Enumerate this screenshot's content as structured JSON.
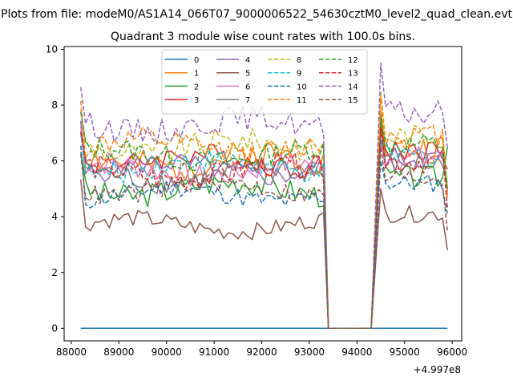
{
  "chart_data": {
    "type": "line",
    "suptitle": "Plots from file: modeM0/AS1A14_066T07_9000006522_54630cztM0_level2_quad_clean.evt",
    "title": "Quadrant 3 module wise count rates with 100.0s bins.",
    "xlabel": "",
    "ylabel": "",
    "x_offset_label": "+4.997e8",
    "xlim": [
      87850,
      96200
    ],
    "ylim": [
      -0.45,
      10.1
    ],
    "x_ticks": [
      88000,
      89000,
      90000,
      91000,
      92000,
      93000,
      94000,
      95000,
      96000
    ],
    "y_ticks": [
      0,
      2,
      4,
      6,
      8,
      10
    ],
    "x_ticks_text": [
      "88000",
      "89000",
      "90000",
      "91000",
      "92000",
      "93000",
      "94000",
      "95000",
      "96000"
    ],
    "y_ticks_text": [
      "0",
      "2",
      "4",
      "6",
      "8",
      "10"
    ],
    "legend": {
      "position": "top-center",
      "columns": 4
    },
    "x_start": 88200,
    "x_step": 100,
    "gap_start": 93400,
    "gap_end": 94300,
    "x_end": 95900,
    "series": [
      {
        "name": "0",
        "color": "#1f77b4",
        "dashed": false,
        "level": 0,
        "amp": 0,
        "peak": 0,
        "end": 0,
        "seed": 1
      },
      {
        "name": "1",
        "color": "#ff7f0e",
        "dashed": false,
        "level": 6.0,
        "amp": 0.55,
        "peak": 7.8,
        "end": 4.7,
        "seed": 2
      },
      {
        "name": "2",
        "color": "#2ca02c",
        "dashed": false,
        "level": 5.0,
        "amp": 0.45,
        "peak": 7.6,
        "end": 6.5,
        "seed": 3
      },
      {
        "name": "3",
        "color": "#d62728",
        "dashed": false,
        "level": 6.0,
        "amp": 0.4,
        "peak": 7.2,
        "end": 5.7,
        "seed": 4
      },
      {
        "name": "4",
        "color": "#9467bd",
        "dashed": false,
        "level": 5.7,
        "amp": 0.4,
        "peak": 6.8,
        "end": 4.9,
        "seed": 5
      },
      {
        "name": "5",
        "color": "#8c564b",
        "dashed": false,
        "level": 3.7,
        "amp": 0.3,
        "peak": 5.0,
        "end": 2.8,
        "seed": 6
      },
      {
        "name": "6",
        "color": "#e377c2",
        "dashed": false,
        "level": 5.7,
        "amp": 0.45,
        "peak": 6.7,
        "end": 4.9,
        "seed": 7
      },
      {
        "name": "7",
        "color": "#7f7f7f",
        "dashed": false,
        "level": 5.5,
        "amp": 0.45,
        "peak": 6.8,
        "end": 5.2,
        "seed": 8
      },
      {
        "name": "8",
        "color": "#bcbd22",
        "dashed": true,
        "level": 6.5,
        "amp": 0.45,
        "peak": 8.5,
        "end": 5.2,
        "seed": 9
      },
      {
        "name": "9",
        "color": "#17becf",
        "dashed": true,
        "level": 5.8,
        "amp": 0.4,
        "peak": 6.8,
        "end": 5.0,
        "seed": 10
      },
      {
        "name": "10",
        "color": "#1f77b4",
        "dashed": true,
        "level": 4.8,
        "amp": 0.35,
        "peak": 6.0,
        "end": 4.1,
        "seed": 11
      },
      {
        "name": "11",
        "color": "#ff7f0e",
        "dashed": true,
        "level": 6.5,
        "amp": 0.45,
        "peak": 8.3,
        "end": 4.7,
        "seed": 12
      },
      {
        "name": "12",
        "color": "#2ca02c",
        "dashed": true,
        "level": 6.2,
        "amp": 0.4,
        "peak": 7.3,
        "end": 5.0,
        "seed": 13
      },
      {
        "name": "13",
        "color": "#d62728",
        "dashed": true,
        "level": 5.6,
        "amp": 0.45,
        "peak": 7.2,
        "end": 4.3,
        "seed": 14
      },
      {
        "name": "14",
        "color": "#9467bd",
        "dashed": true,
        "level": 7.3,
        "amp": 0.45,
        "peak": 9.5,
        "end": 6.5,
        "seed": 15
      },
      {
        "name": "15",
        "color": "#8c564b",
        "dashed": true,
        "level": 5.0,
        "amp": 0.35,
        "peak": 6.5,
        "end": 3.5,
        "seed": 16
      }
    ]
  }
}
